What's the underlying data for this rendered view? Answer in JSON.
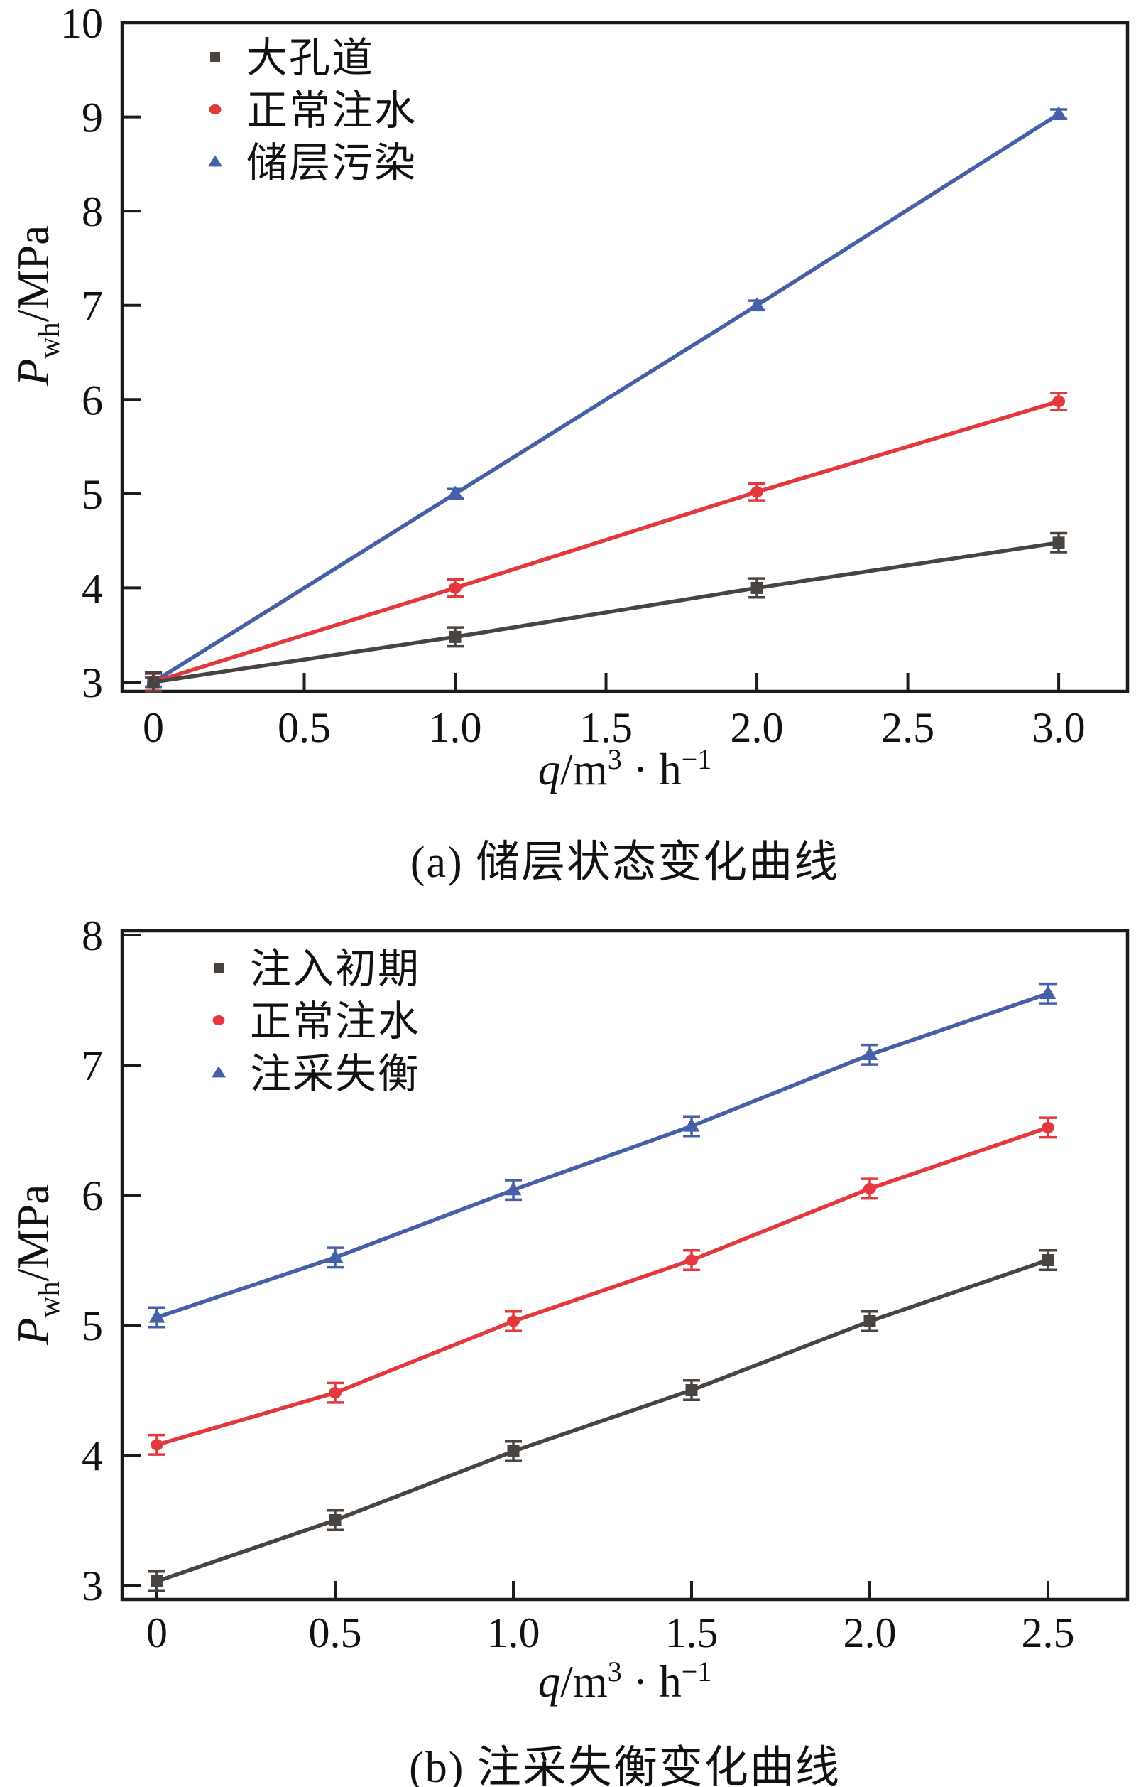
{
  "figure": {
    "background": "#ffffff",
    "axis_color": "#1b1b1b",
    "text_color": "#111111"
  },
  "chart_data": [
    {
      "id": "a",
      "type": "line",
      "title": "(a) 储层状态变化曲线",
      "xlabel": "q/m³·h⁻¹",
      "ylabel": "Pwh/MPa",
      "xlabel_parts": [
        {
          "t": "q",
          "italic": true
        },
        {
          "t": "/m"
        },
        {
          "t": "3",
          "sup": true
        },
        {
          "t": " · "
        },
        {
          "t": "h"
        },
        {
          "t": "−1",
          "sup": true
        }
      ],
      "ylabel_parts": [
        {
          "t": "P",
          "italic": true
        },
        {
          "t": "wh",
          "sub": true
        },
        {
          "t": "/MPa"
        }
      ],
      "x": [
        0,
        1.0,
        2.0,
        3.0
      ],
      "xticks": {
        "values": [
          0,
          0.5,
          1.0,
          1.5,
          2.0,
          2.5,
          3.0
        ],
        "labels": [
          "0",
          "0.5",
          "1.0",
          "1.5",
          "2.0",
          "2.5",
          "3.0"
        ]
      },
      "yticks": {
        "values": [
          3,
          4,
          5,
          6,
          7,
          8,
          9,
          10
        ],
        "labels": [
          "3",
          "4",
          "5",
          "6",
          "7",
          "8",
          "9",
          "10"
        ]
      },
      "xlim": [
        -0.1035,
        3.228
      ],
      "ylim": [
        2.902,
        10.0
      ],
      "grid": false,
      "error_bars": true,
      "legend_position": "top-left-inside",
      "series": [
        {
          "name": "大孔道",
          "marker": "square",
          "color": "#4A4441",
          "values": [
            3.0,
            3.48,
            4.0,
            4.48
          ],
          "error": 0.1
        },
        {
          "name": "正常注水",
          "marker": "circle",
          "color": "#E2383E",
          "values": [
            3.0,
            4.0,
            5.02,
            5.98
          ],
          "error": 0.09
        },
        {
          "name": "储层污染",
          "marker": "triangle",
          "color": "#4560A6",
          "values": [
            3.0,
            5.0,
            7.0,
            9.03
          ],
          "error": 0.05
        }
      ]
    },
    {
      "id": "b",
      "type": "line",
      "title": "(b) 注采失衡变化曲线",
      "xlabel": "q/m³·h⁻¹",
      "ylabel": "Pwh/MPa",
      "xlabel_parts": [
        {
          "t": "q",
          "italic": true
        },
        {
          "t": "/m"
        },
        {
          "t": "3",
          "sup": true
        },
        {
          "t": " · "
        },
        {
          "t": "h"
        },
        {
          "t": "−1",
          "sup": true
        }
      ],
      "ylabel_parts": [
        {
          "t": "P",
          "italic": true
        },
        {
          "t": "wh",
          "sub": true
        },
        {
          "t": "/MPa"
        }
      ],
      "x": [
        0,
        0.5,
        1.0,
        1.5,
        2.0,
        2.5
      ],
      "xticks": {
        "values": [
          0,
          0.5,
          1.0,
          1.5,
          2.0,
          2.5
        ],
        "labels": [
          "0",
          "0.5",
          "1.0",
          "1.5",
          "2.0",
          "2.5"
        ]
      },
      "yticks": {
        "values": [
          3,
          4,
          5,
          6,
          7,
          8
        ],
        "labels": [
          "3",
          "4",
          "5",
          "6",
          "7",
          "8"
        ]
      },
      "xlim": [
        -0.0976,
        2.7231
      ],
      "ylim": [
        2.8907,
        8.0328
      ],
      "grid": false,
      "error_bars": true,
      "legend_position": "top-left-inside",
      "series": [
        {
          "name": "注入初期",
          "marker": "square",
          "color": "#4A4441",
          "values": [
            3.03,
            3.5,
            4.03,
            4.5,
            5.03,
            5.5
          ],
          "error": 0.075
        },
        {
          "name": "正常注水",
          "marker": "circle",
          "color": "#E2383E",
          "values": [
            4.08,
            4.48,
            5.03,
            5.5,
            6.05,
            6.52
          ],
          "error": 0.075
        },
        {
          "name": "注采失衡",
          "marker": "triangle",
          "color": "#4560A6",
          "values": [
            5.06,
            5.52,
            6.04,
            6.53,
            7.08,
            7.55
          ],
          "error": 0.075
        }
      ]
    }
  ]
}
